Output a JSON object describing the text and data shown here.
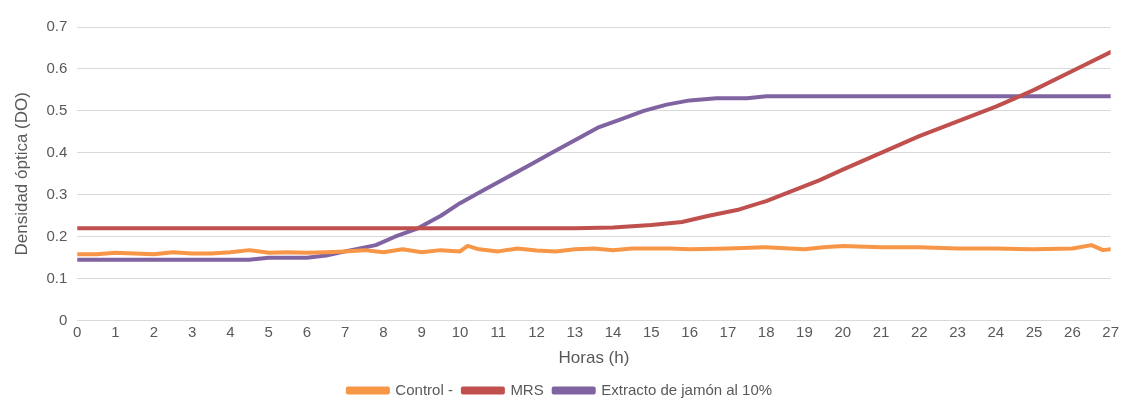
{
  "chart_data": {
    "type": "line",
    "xlabel": "Horas (h)",
    "ylabel": "Densidad óptica (DO)",
    "xlim": [
      0,
      27
    ],
    "xticks": [
      0,
      1,
      2,
      3,
      4,
      5,
      6,
      7,
      8,
      9,
      10,
      11,
      12,
      13,
      14,
      15,
      16,
      17,
      18,
      19,
      20,
      21,
      22,
      23,
      24,
      25,
      26,
      27
    ],
    "ylim": [
      0,
      0.7
    ],
    "yticks": [
      0,
      0.1,
      0.2,
      0.3,
      0.4,
      0.5,
      0.6,
      0.7
    ],
    "grid": "y",
    "legend": "bottom",
    "marker": "none",
    "line_style": "solid",
    "series": [
      {
        "name": "Control -",
        "color": "#f79646",
        "x": [
          0,
          0.5,
          1,
          1.5,
          2,
          2.5,
          3,
          3.5,
          4,
          4.5,
          5,
          5.5,
          6,
          6.5,
          7,
          7.5,
          8,
          8.5,
          9,
          9.5,
          10,
          10.2,
          10.5,
          11,
          11.5,
          12,
          12.5,
          13,
          13.5,
          14,
          14.5,
          15,
          15.5,
          16,
          17,
          18,
          19,
          19.5,
          20,
          21,
          22,
          23,
          24,
          25,
          26,
          26.5,
          26.8,
          27
        ],
        "values": [
          0.158,
          0.158,
          0.162,
          0.16,
          0.158,
          0.163,
          0.16,
          0.16,
          0.163,
          0.168,
          0.162,
          0.163,
          0.162,
          0.163,
          0.165,
          0.168,
          0.163,
          0.17,
          0.163,
          0.168,
          0.165,
          0.178,
          0.17,
          0.165,
          0.172,
          0.167,
          0.165,
          0.17,
          0.172,
          0.168,
          0.172,
          0.172,
          0.172,
          0.17,
          0.172,
          0.175,
          0.17,
          0.175,
          0.178,
          0.175,
          0.175,
          0.172,
          0.172,
          0.17,
          0.172,
          0.18,
          0.168,
          0.17
        ]
      },
      {
        "name": "MRS",
        "color": "#c0504d",
        "x": [
          0,
          13,
          14,
          15,
          15.8,
          16.5,
          17.3,
          18,
          18.7,
          19.4,
          20,
          21,
          22,
          23,
          24,
          25,
          26,
          27
        ],
        "values": [
          0.22,
          0.22,
          0.222,
          0.228,
          0.235,
          0.25,
          0.265,
          0.285,
          0.31,
          0.335,
          0.36,
          0.4,
          0.44,
          0.475,
          0.51,
          0.55,
          0.595,
          0.64
        ]
      },
      {
        "name": "Extracto de jamón al 10%",
        "color": "#8064a2",
        "x": [
          0,
          4.5,
          5,
          6,
          6.5,
          7,
          7.8,
          8.3,
          8.9,
          9.5,
          10,
          10.6,
          11.2,
          11.8,
          12.4,
          13,
          13.6,
          14.2,
          14.8,
          15.4,
          16,
          16.7,
          17.5,
          18,
          27
        ],
        "values": [
          0.145,
          0.145,
          0.15,
          0.15,
          0.155,
          0.165,
          0.18,
          0.2,
          0.22,
          0.25,
          0.28,
          0.31,
          0.34,
          0.37,
          0.4,
          0.43,
          0.46,
          0.48,
          0.5,
          0.515,
          0.525,
          0.53,
          0.53,
          0.535,
          0.535
        ]
      }
    ]
  }
}
